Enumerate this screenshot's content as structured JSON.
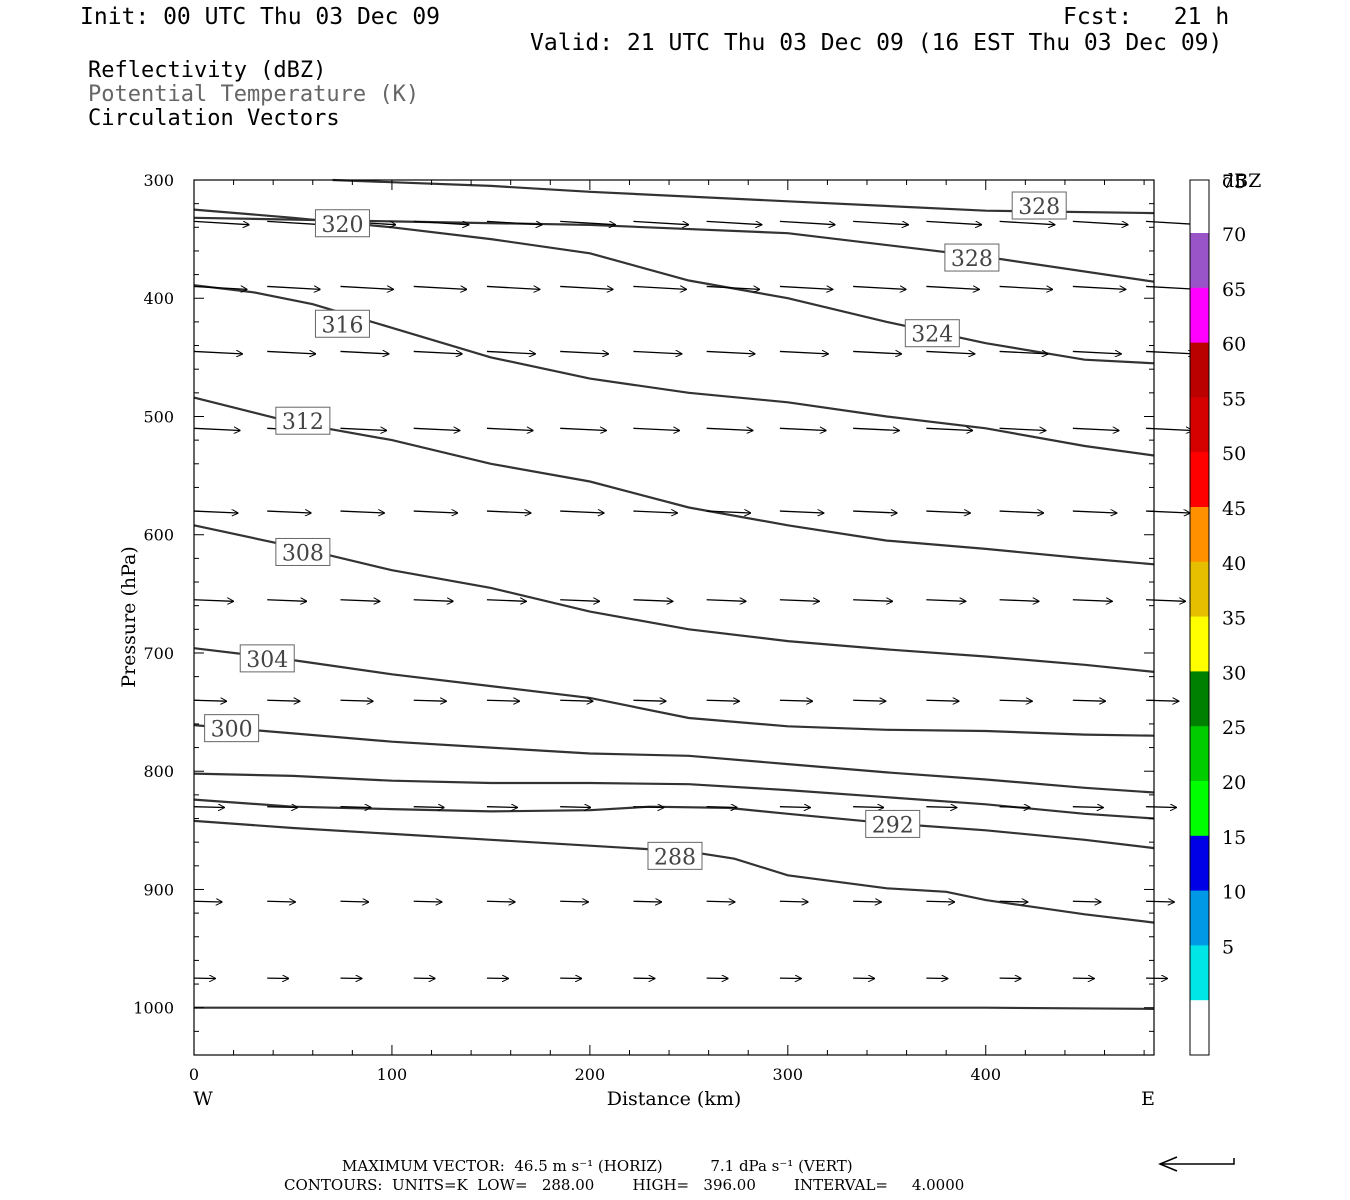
{
  "header": {
    "init": "Init: 00 UTC Thu 03 Dec 09",
    "fcst": "Fcst:   21 h",
    "valid": "Valid: 21 UTC Thu 03 Dec 09 (16 EST Thu 03 Dec 09)"
  },
  "fields": {
    "reflectivity": "Reflectivity (dBZ)",
    "theta": "Potential Temperature (K)",
    "vectors": "Circulation Vectors"
  },
  "footer": {
    "max_vector": "MAXIMUM VECTOR:  46.5 m s⁻¹ (HORIZ)          7.1 dPa s⁻¹ (VERT)",
    "contours": "CONTOURS:  UNITS=K  LOW=   288.00        HIGH=   396.00        INTERVAL=     4.0000"
  },
  "colors": {
    "contour": "#333333",
    "vector": "#000000",
    "label_box": "#666666",
    "contour_label_text": "#444444"
  },
  "chart_data": {
    "type": "cross-section",
    "xlabel": "Distance (km)",
    "ylabel": "Pressure (hPa)",
    "xlim": [
      0,
      485
    ],
    "ylim": [
      1040,
      300
    ],
    "xticks": [
      0,
      100,
      200,
      300,
      400
    ],
    "xtick_labels": [
      "0",
      "100",
      "200",
      "300",
      "400"
    ],
    "yticks": [
      300,
      400,
      500,
      600,
      700,
      800,
      900,
      1000
    ],
    "ytick_labels": [
      "300",
      "400",
      "500",
      "600",
      "700",
      "800",
      "900",
      "1000"
    ],
    "x_end_labels": {
      "left": "W",
      "right": "E"
    },
    "colorbar": {
      "title": "dBZ",
      "bins": [
        {
          "label": "",
          "color": "#ffffff"
        },
        {
          "label": "5",
          "color": "#00e6e6"
        },
        {
          "label": "10",
          "color": "#0099e6"
        },
        {
          "label": "15",
          "color": "#0000e6"
        },
        {
          "label": "20",
          "color": "#00ff00"
        },
        {
          "label": "25",
          "color": "#00cc00"
        },
        {
          "label": "30",
          "color": "#008000"
        },
        {
          "label": "35",
          "color": "#ffff00"
        },
        {
          "label": "40",
          "color": "#e6c000"
        },
        {
          "label": "45",
          "color": "#ff9000"
        },
        {
          "label": "50",
          "color": "#ff0000"
        },
        {
          "label": "55",
          "color": "#d50000"
        },
        {
          "label": "60",
          "color": "#bb0000"
        },
        {
          "label": "65",
          "color": "#ff00ff"
        },
        {
          "label": "70",
          "color": "#9955c8"
        },
        {
          "label": "75",
          "color": "#ffffff"
        }
      ]
    },
    "contours": [
      {
        "value": 288,
        "label": "288",
        "label_at": [
          243,
          872
        ],
        "points": [
          [
            0,
            1000
          ],
          [
            100,
            1000
          ],
          [
            200,
            1000
          ],
          [
            300,
            1000
          ],
          [
            400,
            1000
          ],
          [
            485,
            1001
          ]
        ]
      },
      {
        "value": 292,
        "label": "292",
        "label_at": [
          353,
          845
        ],
        "points": [
          [
            0,
            842
          ],
          [
            50,
            848
          ],
          [
            100,
            853
          ],
          [
            150,
            858
          ],
          [
            200,
            863
          ],
          [
            250,
            868
          ],
          [
            273,
            874
          ],
          [
            300,
            888
          ],
          [
            350,
            899
          ],
          [
            380,
            902
          ],
          [
            400,
            909
          ],
          [
            450,
            921
          ],
          [
            485,
            928
          ]
        ]
      },
      {
        "value": 296,
        "label": "",
        "label_at": null,
        "points": [
          [
            0,
            824
          ],
          [
            50,
            830
          ],
          [
            100,
            832
          ],
          [
            150,
            834
          ],
          [
            200,
            833
          ],
          [
            230,
            830
          ],
          [
            270,
            831
          ],
          [
            300,
            836
          ],
          [
            350,
            844
          ],
          [
            400,
            850
          ],
          [
            450,
            858
          ],
          [
            485,
            865
          ]
        ]
      },
      {
        "value": 300,
        "label": "300",
        "label_at": [
          19,
          764
        ],
        "points": [
          [
            0,
            802
          ],
          [
            50,
            804
          ],
          [
            100,
            808
          ],
          [
            150,
            810
          ],
          [
            200,
            810
          ],
          [
            250,
            811
          ],
          [
            300,
            816
          ],
          [
            350,
            822
          ],
          [
            400,
            828
          ],
          [
            450,
            836
          ],
          [
            485,
            840
          ]
        ]
      },
      {
        "value": 304,
        "label": "304",
        "label_at": [
          37,
          705
        ],
        "points": [
          [
            0,
            761
          ],
          [
            50,
            768
          ],
          [
            100,
            775
          ],
          [
            150,
            780
          ],
          [
            200,
            785
          ],
          [
            250,
            787
          ],
          [
            300,
            794
          ],
          [
            350,
            801
          ],
          [
            400,
            807
          ],
          [
            450,
            814
          ],
          [
            485,
            818
          ]
        ]
      },
      {
        "value": 308,
        "label": "308",
        "label_at": [
          55,
          615
        ],
        "points": [
          [
            0,
            696
          ],
          [
            50,
            706
          ],
          [
            100,
            718
          ],
          [
            150,
            728
          ],
          [
            200,
            738
          ],
          [
            250,
            755
          ],
          [
            300,
            762
          ],
          [
            350,
            765
          ],
          [
            400,
            766
          ],
          [
            450,
            769
          ],
          [
            485,
            770
          ]
        ]
      },
      {
        "value": 312,
        "label": "312",
        "label_at": [
          55,
          504
        ],
        "points": [
          [
            0,
            592
          ],
          [
            50,
            610
          ],
          [
            100,
            630
          ],
          [
            150,
            645
          ],
          [
            200,
            665
          ],
          [
            250,
            680
          ],
          [
            300,
            690
          ],
          [
            350,
            697
          ],
          [
            400,
            703
          ],
          [
            450,
            710
          ],
          [
            485,
            716
          ]
        ]
      },
      {
        "value": 316,
        "label": "316",
        "label_at": [
          75,
          422
        ],
        "points": [
          [
            0,
            484
          ],
          [
            50,
            505
          ],
          [
            100,
            520
          ],
          [
            150,
            540
          ],
          [
            200,
            555
          ],
          [
            250,
            577
          ],
          [
            300,
            592
          ],
          [
            350,
            605
          ],
          [
            400,
            612
          ],
          [
            450,
            620
          ],
          [
            485,
            625
          ]
        ]
      },
      {
        "value": 320,
        "label": "320",
        "label_at": [
          75,
          337
        ],
        "points": [
          [
            0,
            389
          ],
          [
            30,
            395
          ],
          [
            60,
            405
          ],
          [
            100,
            425
          ],
          [
            150,
            450
          ],
          [
            200,
            468
          ],
          [
            250,
            480
          ],
          [
            300,
            488
          ],
          [
            350,
            500
          ],
          [
            400,
            510
          ],
          [
            450,
            525
          ],
          [
            485,
            533
          ]
        ]
      },
      {
        "value": 324,
        "label": "324",
        "label_at": [
          373,
          430
        ],
        "points": [
          [
            0,
            325
          ],
          [
            50,
            332
          ],
          [
            100,
            340
          ],
          [
            150,
            350
          ],
          [
            200,
            362
          ],
          [
            250,
            385
          ],
          [
            300,
            400
          ],
          [
            350,
            420
          ],
          [
            400,
            438
          ],
          [
            450,
            452
          ],
          [
            485,
            455
          ]
        ]
      },
      {
        "value": 328,
        "label": "328",
        "label_at": [
          393,
          366
        ],
        "points": [
          [
            0,
            332
          ],
          [
            100,
            335
          ],
          [
            200,
            338
          ],
          [
            300,
            345
          ],
          [
            400,
            365
          ],
          [
            485,
            386
          ]
        ]
      },
      {
        "value": 332,
        "label": "",
        "label_at": null,
        "points": [
          [
            70,
            300
          ],
          [
            150,
            305
          ],
          [
            200,
            310
          ],
          [
            300,
            318
          ],
          [
            400,
            326
          ],
          [
            485,
            328
          ]
        ]
      }
    ],
    "extra_labels": [
      {
        "label": "328",
        "at": [
          427,
          322
        ]
      }
    ],
    "vector_rows": [
      {
        "p": 335,
        "u": 1.0
      },
      {
        "p": 390,
        "u": 0.95
      },
      {
        "p": 445,
        "u": 0.85
      },
      {
        "p": 510,
        "u": 0.8
      },
      {
        "p": 580,
        "u": 0.75
      },
      {
        "p": 655,
        "u": 0.65
      },
      {
        "p": 740,
        "u": 0.5
      },
      {
        "p": 830,
        "u": 0.45
      },
      {
        "p": 910,
        "u": 0.4
      },
      {
        "p": 975,
        "u": 0.25
      }
    ],
    "vector_columns": [
      0,
      37,
      74,
      111,
      148,
      185,
      222,
      259,
      296,
      333,
      370,
      407,
      444,
      481
    ]
  }
}
